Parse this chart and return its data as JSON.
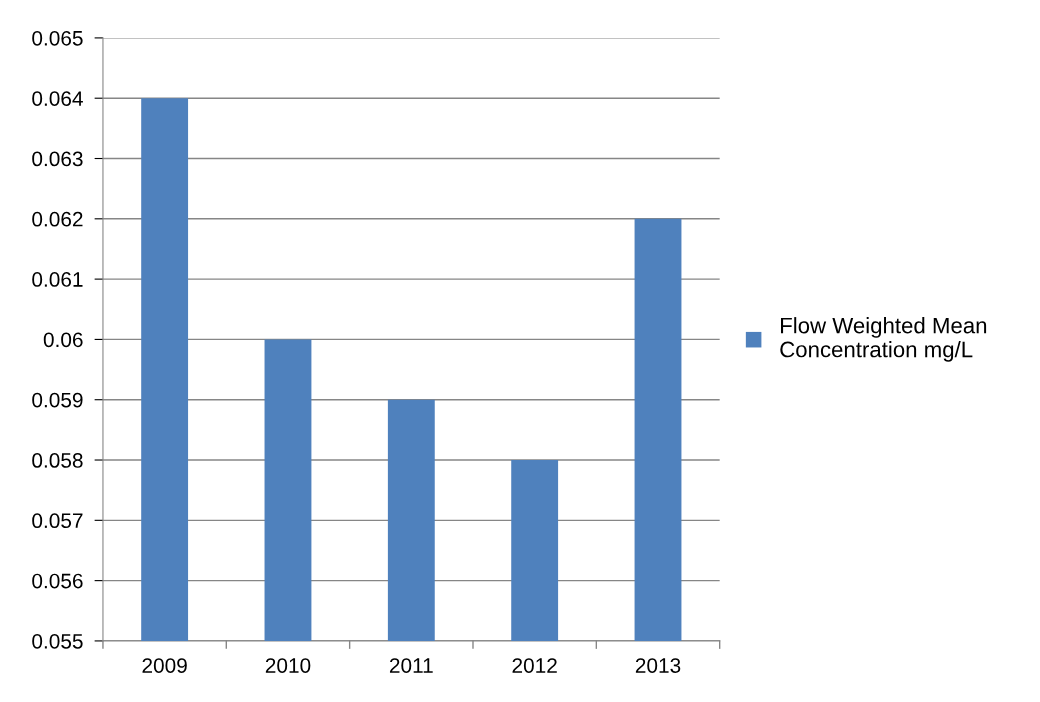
{
  "chart_data": {
    "type": "bar",
    "categories": [
      "2009",
      "2010",
      "2011",
      "2012",
      "2013"
    ],
    "series": [
      {
        "name": "Flow Weighted Mean\nConcentration mg/L",
        "color": "#4f81bd",
        "values": [
          0.064,
          0.06,
          0.059,
          0.058,
          0.062
        ]
      }
    ],
    "ylim": [
      0.055,
      0.065
    ],
    "yticks": [
      0.055,
      0.056,
      0.057,
      0.058,
      0.059,
      0.06,
      0.061,
      0.062,
      0.063,
      0.064,
      0.065
    ],
    "grid": "y",
    "legend": "right"
  }
}
